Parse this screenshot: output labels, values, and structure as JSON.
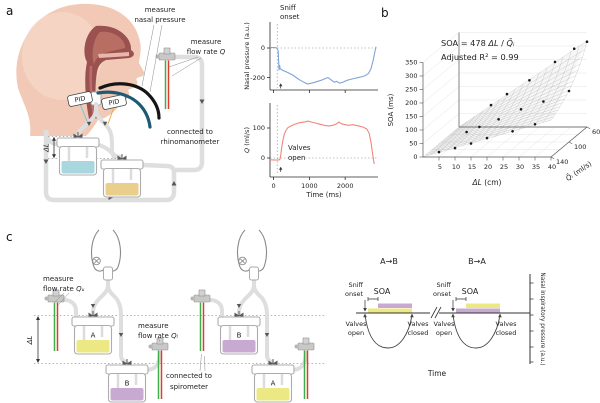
{
  "panel_labels": {
    "a": "a",
    "b": "b",
    "c": "c"
  },
  "colors": {
    "odor_a_yellow": "#ece884",
    "odor_b_purple": "#c7a9d2",
    "liquid_blue": "#a9d7e0",
    "liquid_yellow": "#e9cf8b",
    "nasal_trace": "#7fa3d8",
    "flow_trace": "#f2867a",
    "sensor_green": "#3fae49",
    "sensor_red": "#e23b2e"
  },
  "panel_a": {
    "labels": {
      "measure": "measure",
      "measure_nasal_2": "nasal pressure",
      "measure_flow_2": "flow rate ",
      "flow_q": "Q",
      "pid": "PID",
      "connected_1": "connected to",
      "connected_2": "rhinomanometer",
      "delta_l": "ΔL"
    }
  },
  "panel_c": {
    "labels": {
      "measure": "measure",
      "flow_rate": "flow rate ",
      "q_upper": "Qᵤ",
      "q_lower": "Qₗ",
      "connected_1": "connected to",
      "connected_2": "spirometer",
      "delta_l": "ΔL",
      "bottle_a": "A",
      "bottle_b": "B"
    },
    "timing": {
      "condition_ab": "A→B",
      "condition_ba": "B→A",
      "sniff_1": "Sniff",
      "sniff_2": "onset",
      "soa": "SOA",
      "valves": "Valves",
      "open": "open",
      "closed": "closed",
      "time_label": "Time",
      "y_axis_label": "Nasal inspiratory pressure (a.u.)"
    }
  },
  "chart_data": [
    {
      "type": "line",
      "y_label": "Nasal pressure (a.u.)",
      "y_ticks": [
        0,
        -200
      ],
      "annotation_1": "Sniff",
      "annotation_2": "onset",
      "points": [
        [
          -100,
          3
        ],
        [
          40,
          3
        ],
        [
          90,
          0
        ],
        [
          130,
          -20
        ],
        [
          150,
          -150
        ],
        [
          165,
          -115
        ],
        [
          185,
          -140
        ],
        [
          250,
          -150
        ],
        [
          350,
          -160
        ],
        [
          450,
          -172
        ],
        [
          550,
          -185
        ],
        [
          650,
          -203
        ],
        [
          750,
          -218
        ],
        [
          850,
          -232
        ],
        [
          950,
          -243
        ],
        [
          1050,
          -238
        ],
        [
          1150,
          -232
        ],
        [
          1250,
          -224
        ],
        [
          1350,
          -216
        ],
        [
          1450,
          -206
        ],
        [
          1520,
          -200
        ],
        [
          1600,
          -214
        ],
        [
          1700,
          -232
        ],
        [
          1760,
          -226
        ],
        [
          1850,
          -238
        ],
        [
          1950,
          -230
        ],
        [
          2050,
          -218
        ],
        [
          2150,
          -212
        ],
        [
          2250,
          -206
        ],
        [
          2350,
          -201
        ],
        [
          2450,
          -195
        ],
        [
          2550,
          -188
        ],
        [
          2650,
          -172
        ],
        [
          2720,
          -140
        ],
        [
          2780,
          -85
        ],
        [
          2830,
          -25
        ],
        [
          2860,
          8
        ]
      ]
    },
    {
      "type": "line",
      "y_symbol": "Q",
      "y_unit": " (ml/s)",
      "x_label": "Time (ms)",
      "x_ticks": [
        0,
        1000,
        2000
      ],
      "y_ticks": [
        100,
        0
      ],
      "annotation_1": "Valves",
      "annotation_2": "open",
      "points": [
        [
          -100,
          -6
        ],
        [
          100,
          -7
        ],
        [
          170,
          -6
        ],
        [
          200,
          8
        ],
        [
          230,
          38
        ],
        [
          265,
          62
        ],
        [
          300,
          80
        ],
        [
          350,
          93
        ],
        [
          400,
          101
        ],
        [
          500,
          108
        ],
        [
          600,
          113
        ],
        [
          700,
          117
        ],
        [
          800,
          119
        ],
        [
          900,
          121
        ],
        [
          960,
          123
        ],
        [
          1050,
          120
        ],
        [
          1150,
          117
        ],
        [
          1250,
          114
        ],
        [
          1350,
          111
        ],
        [
          1450,
          108
        ],
        [
          1550,
          107
        ],
        [
          1650,
          109
        ],
        [
          1750,
          113
        ],
        [
          1820,
          120
        ],
        [
          1900,
          114
        ],
        [
          2000,
          111
        ],
        [
          2100,
          109
        ],
        [
          2200,
          111
        ],
        [
          2300,
          109
        ],
        [
          2400,
          106
        ],
        [
          2500,
          103
        ],
        [
          2600,
          97
        ],
        [
          2670,
          82
        ],
        [
          2720,
          52
        ],
        [
          2770,
          12
        ],
        [
          2810,
          -20
        ]
      ]
    },
    {
      "type": "3d-surface-scatter",
      "formula_pre": "SOA = 478 ",
      "formula_sep": " / ",
      "r2_label": "Adjusted R² = 0.99",
      "z_label": "SOA (ms)",
      "x_symbol": "ΔL",
      "x_unit": " (cm)",
      "depth_symbol": "Q̄ᵢ",
      "depth_unit": " (ml/s)",
      "constant": 478,
      "z_ticks": [
        0,
        50,
        100,
        150,
        200,
        250,
        300,
        350
      ],
      "x_ticks": [
        5,
        10,
        15,
        20,
        25,
        30,
        35,
        40
      ],
      "depth_ticks": [
        140,
        100,
        60
      ],
      "points": [
        [
          5,
          140,
          18
        ],
        [
          8,
          100,
          37
        ],
        [
          10,
          140,
          33
        ],
        [
          10,
          60,
          81
        ],
        [
          12,
          100,
          56
        ],
        [
          15,
          140,
          50
        ],
        [
          15,
          60,
          122
        ],
        [
          18,
          100,
          84
        ],
        [
          20,
          140,
          70
        ],
        [
          22,
          60,
          173
        ],
        [
          25,
          100,
          121
        ],
        [
          28,
          140,
          95
        ],
        [
          30,
          60,
          241
        ],
        [
          32,
          100,
          150
        ],
        [
          35,
          140,
          121
        ],
        [
          36,
          60,
          290
        ],
        [
          40,
          100,
          189
        ],
        [
          40,
          60,
          316
        ]
      ]
    }
  ]
}
